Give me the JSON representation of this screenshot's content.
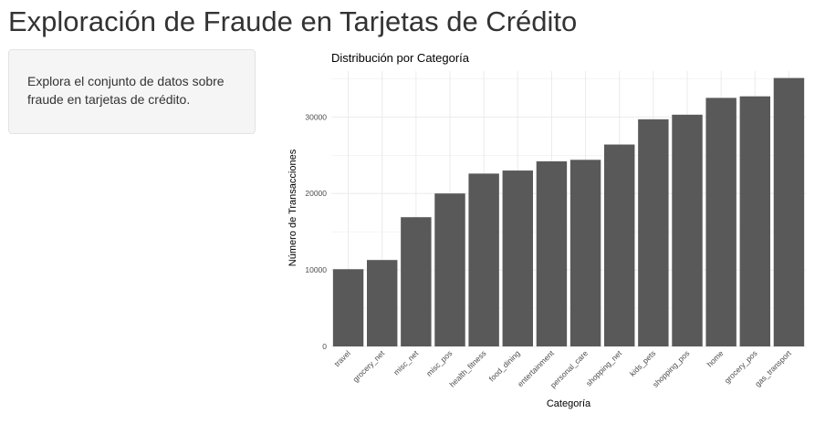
{
  "page": {
    "title": "Exploración de Fraude en Tarjetas de Crédito"
  },
  "sidebar": {
    "text": "Explora el conjunto de datos sobre fraude en tarjetas de crédito."
  },
  "colors": {
    "bar": "#595959",
    "grid": "#ebebeb",
    "axis_text": "#4d4d4d",
    "text": "#333333"
  },
  "chart_data": {
    "type": "bar",
    "title": "Distribución por Categoría",
    "xlabel": "Categoría",
    "ylabel": "Número de Transacciones",
    "ylim": [
      0,
      36000
    ],
    "yticks": [
      0,
      10000,
      20000,
      30000
    ],
    "grid": true,
    "legend": "none",
    "categories": [
      "travel",
      "grocery_net",
      "misc_net",
      "misc_pos",
      "health_fitness",
      "food_dining",
      "entertainment",
      "personal_care",
      "shopping_net",
      "kids_pets",
      "shopping_pos",
      "home",
      "grocery_pos",
      "gas_transport"
    ],
    "values": [
      10100,
      11300,
      16900,
      20000,
      22600,
      23000,
      24200,
      24400,
      26400,
      29700,
      30300,
      32500,
      32700,
      35100
    ]
  }
}
